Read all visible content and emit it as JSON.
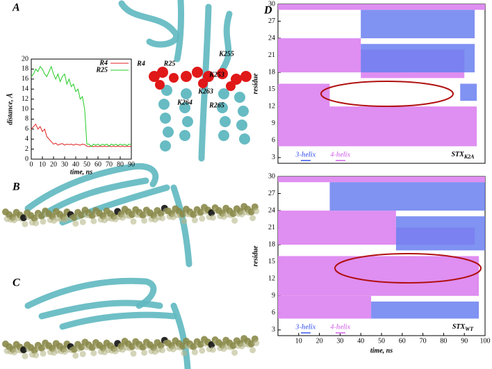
{
  "panel_labels": [
    "A",
    "B",
    "C",
    "D"
  ],
  "molecule_labels": [
    "R4",
    "R25",
    "K255",
    "K253",
    "K263",
    "K264",
    "R265"
  ],
  "chart_data": [
    {
      "type": "line",
      "xlabel": "time, ns",
      "ylabel": "distance, Å",
      "x": [
        0,
        2,
        4,
        6,
        8,
        10,
        12,
        14,
        16,
        18,
        20,
        22,
        24,
        26,
        28,
        30,
        32,
        34,
        36,
        38,
        40,
        42,
        44,
        46,
        48,
        50,
        52,
        54,
        56,
        58,
        60,
        62,
        64,
        66,
        68,
        70,
        72,
        74,
        76,
        78,
        80,
        82,
        84,
        86,
        88,
        90
      ],
      "series": [
        {
          "name": "R4",
          "color": "#e02020",
          "values": [
            6,
            6.5,
            7,
            6,
            6.5,
            5.5,
            6,
            4.5,
            4,
            3.5,
            3,
            3.2,
            2.8,
            3,
            3.1,
            2.8,
            3,
            2.9,
            3,
            2.8,
            3,
            2.9,
            2.8,
            3,
            2.9,
            2.6,
            2.5,
            2.6,
            2.5,
            2.6,
            2.5,
            2.6,
            2.5,
            2.6,
            2.5,
            2.6,
            2.5,
            2.6,
            2.5,
            2.6,
            2.5,
            2.6,
            2.5,
            2.6,
            2.5,
            2.6
          ]
        },
        {
          "name": "R25",
          "color": "#22cc22",
          "values": [
            16.5,
            17,
            18,
            17.5,
            18.5,
            18,
            17,
            16.5,
            17.5,
            18.5,
            17,
            16,
            17,
            15.5,
            16.5,
            17,
            15,
            16,
            14.5,
            15,
            13.5,
            14,
            12,
            12.5,
            10,
            3,
            3,
            2.5,
            3,
            2.8,
            3,
            2.7,
            3,
            2.8,
            3,
            2.6,
            3,
            2.8,
            3,
            2.7,
            3,
            2.8,
            3,
            2.7,
            3,
            2.9
          ]
        }
      ],
      "xlim": [
        0,
        90
      ],
      "xticks": [
        0,
        10,
        20,
        30,
        40,
        50,
        60,
        70,
        80,
        90
      ],
      "ylim": [
        0,
        20
      ],
      "yticks": [
        0,
        2,
        4,
        6,
        8,
        10,
        12,
        14,
        16,
        18,
        20
      ]
    },
    {
      "type": "interval",
      "ylabel": "residue",
      "label": "STX",
      "label_sub": "K2A",
      "series": [
        {
          "name": "3-helix",
          "color": "#6a7ff0",
          "segments": [
            [
              40,
              95,
              24,
              29
            ],
            [
              40,
              95,
              18,
              23
            ],
            [
              88,
              96,
              13,
              16
            ]
          ]
        },
        {
          "name": "4-helix",
          "color": "#dd88f0",
          "segments": [
            [
              0,
              100,
              29,
              30
            ],
            [
              0,
              40,
              18,
              24
            ],
            [
              40,
              90,
              17,
              22
            ],
            [
              0,
              25,
              5,
              16
            ],
            [
              25,
              96,
              5,
              12
            ]
          ]
        }
      ],
      "xlim": [
        0,
        100
      ],
      "ylim": [
        2,
        30
      ],
      "yticks": [
        3,
        6,
        9,
        12,
        15,
        18,
        21,
        24,
        27,
        30
      ]
    },
    {
      "type": "interval",
      "xlabel": "time, ns",
      "ylabel": "residue",
      "label": "STX",
      "label_sub": "WT",
      "series": [
        {
          "name": "3-helix",
          "color": "#6a7ff0",
          "segments": [
            [
              25,
              100,
              24,
              29
            ],
            [
              57,
              100,
              17,
              23
            ],
            [
              45,
              97,
              5,
              8
            ]
          ]
        },
        {
          "name": "4-helix",
          "color": "#dd88f0",
          "segments": [
            [
              0,
              100,
              29,
              30
            ],
            [
              0,
              57,
              18,
              24
            ],
            [
              57,
              95,
              18,
              21
            ],
            [
              0,
              97,
              9,
              16
            ],
            [
              0,
              45,
              5,
              9
            ]
          ]
        }
      ],
      "xlim": [
        0,
        100
      ],
      "xticks": [
        10,
        20,
        30,
        40,
        50,
        60,
        70,
        80,
        90,
        100
      ],
      "ylim": [
        2,
        30
      ],
      "yticks": [
        3,
        6,
        9,
        12,
        15,
        18,
        21,
        24,
        27,
        30
      ]
    }
  ]
}
